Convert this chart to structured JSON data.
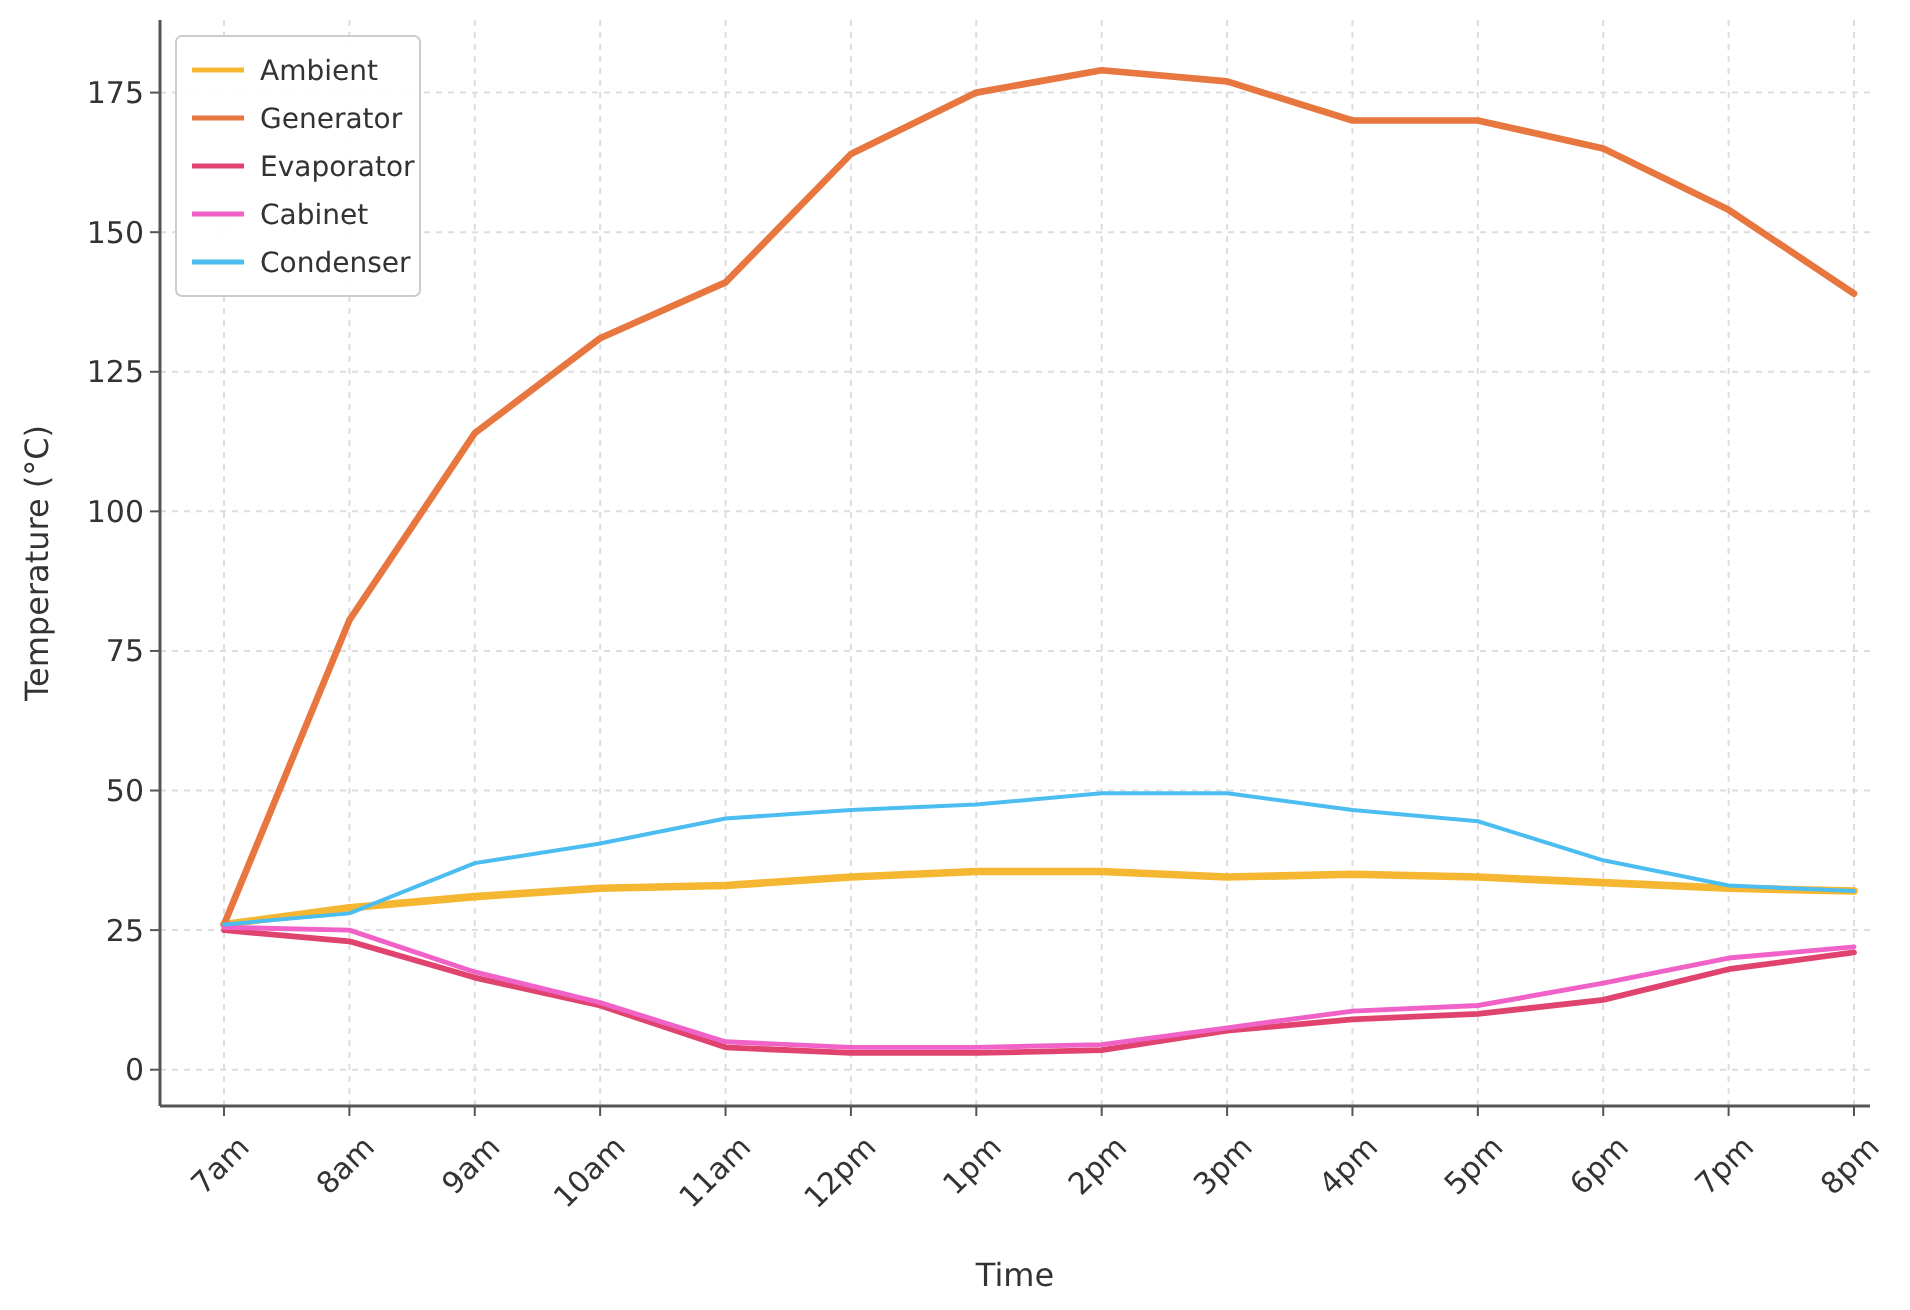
{
  "chart_data": {
    "type": "line",
    "xlabel": "Time",
    "ylabel": "Temperature (°C)",
    "categories": [
      "7am",
      "8am",
      "9am",
      "10am",
      "11am",
      "12pm",
      "1pm",
      "2pm",
      "3pm",
      "4pm",
      "5pm",
      "6pm",
      "7pm",
      "8pm"
    ],
    "series": [
      {
        "name": "Ambient",
        "color": "#f5b732",
        "values": [
          26,
          29,
          31,
          32.5,
          33,
          34.5,
          35.5,
          35.5,
          34.5,
          35,
          34.5,
          33.5,
          32.5,
          32
        ]
      },
      {
        "name": "Generator",
        "color": "#e8763f",
        "values": [
          26,
          80.5,
          114,
          131,
          141,
          164,
          175,
          179,
          177,
          170,
          170,
          165,
          154,
          139
        ]
      },
      {
        "name": "Evaporator",
        "color": "#e0436e",
        "values": [
          25,
          23,
          16.5,
          11.5,
          4,
          3,
          3,
          3.5,
          7,
          9,
          10,
          12.5,
          18,
          21
        ]
      },
      {
        "name": "Cabinet",
        "color": "#f062c8",
        "values": [
          25.5,
          25,
          17.5,
          12,
          5,
          4,
          4,
          4.5,
          7.5,
          10.5,
          11.5,
          15.5,
          20,
          22
        ]
      },
      {
        "name": "Condenser",
        "color": "#4cbdf0",
        "values": [
          26,
          28,
          37,
          40.5,
          45,
          46.5,
          47.5,
          49.5,
          49.5,
          46.5,
          44.5,
          37.5,
          33,
          32
        ]
      }
    ],
    "ylim": [
      -6.5,
      188
    ],
    "yticks": [
      0,
      25,
      50,
      75,
      100,
      125,
      150,
      175
    ],
    "grid": true,
    "legend": "top left",
    "line_style": "solid",
    "marker": "none"
  }
}
